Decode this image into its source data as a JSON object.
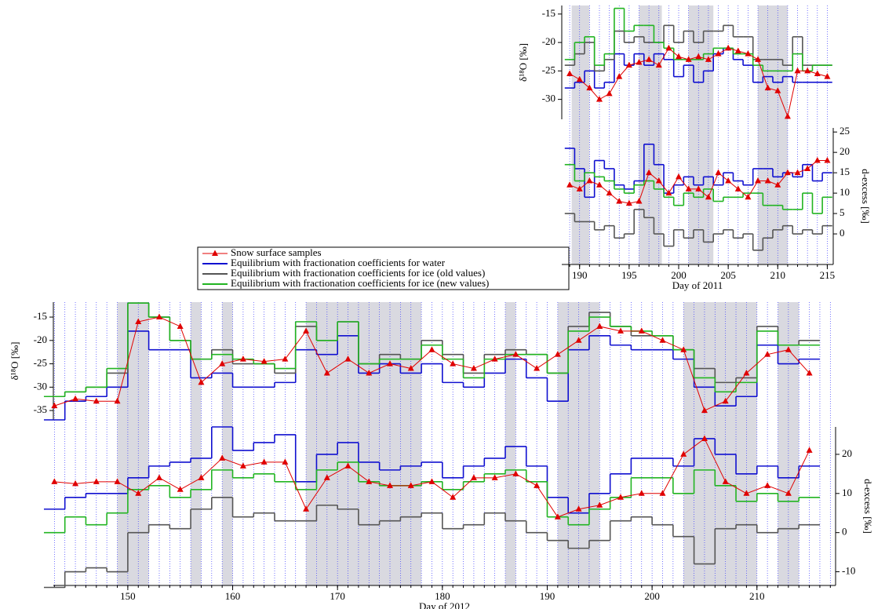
{
  "chart_data": [
    {
      "type": "step",
      "ylabel": "δ¹⁸O [‰]",
      "legend": true,
      "x": [
        189,
        190,
        191,
        192,
        193,
        194,
        195,
        196,
        197,
        198,
        199,
        200,
        201,
        202,
        203,
        204,
        205,
        206,
        207,
        208,
        209,
        210,
        211,
        212,
        213,
        214,
        215
      ],
      "xlim": [
        188.2,
        215.6
      ],
      "ylim": [
        -33.5,
        -13.5
      ],
      "yticks": [
        -30,
        -25,
        -20,
        -15
      ],
      "shaded": [
        [
          189.2,
          191
        ],
        [
          196,
          198.3
        ],
        [
          201,
          203.5
        ],
        [
          208,
          211
        ]
      ],
      "series": [
        {
          "name": "Snow surface samples",
          "color": "#e00000",
          "style": "markers",
          "values": [
            -25.5,
            -26.5,
            -28,
            -30,
            -29,
            -26,
            -24,
            -23.5,
            -23,
            -24,
            -21,
            -22.5,
            -23,
            -22.5,
            -23,
            -22,
            -21,
            -21.5,
            -22,
            -23,
            -28,
            -28.5,
            -33,
            -25,
            -25,
            -25.5,
            -26
          ]
        },
        {
          "name": "Equilibrium with fractionation coefficients for water",
          "color": "#1010d0",
          "style": "step",
          "values": [
            -28,
            -27,
            -25,
            -28,
            -27,
            -22,
            -24,
            -22,
            -24,
            -22,
            -23,
            -26,
            -24,
            -27,
            -25,
            -22,
            -21,
            -23,
            -24,
            -27,
            -26,
            -27,
            -26,
            -27,
            -27,
            -27,
            -27
          ]
        },
        {
          "name": "Equilibrium with fractionation coefficients for ice (old values)",
          "color": "#555555",
          "style": "step",
          "values": [
            -24,
            -22,
            -20,
            -25,
            -23,
            -18,
            -20,
            -19,
            -20,
            -20,
            -17,
            -20,
            -18,
            -20,
            -18,
            -18,
            -17,
            -19,
            -19,
            -23,
            -23,
            -23,
            -24,
            -19,
            -24,
            -24,
            -24
          ]
        },
        {
          "name": "Equilibrium with fractionation coefficients for ice (new values)",
          "color": "#22b422",
          "style": "step",
          "values": [
            -23,
            -20,
            -19,
            -24,
            -22,
            -14,
            -18,
            -17,
            -17,
            -20,
            -21,
            -23,
            -23,
            -23,
            -22,
            -21,
            -21,
            -22,
            -22,
            -24,
            -25,
            -25,
            -25,
            -22,
            -25,
            -24,
            -24
          ]
        }
      ]
    },
    {
      "type": "step",
      "ylabel": "d-excess [‰]",
      "xlabel": "Day of 2011",
      "x": [
        189,
        190,
        191,
        192,
        193,
        194,
        195,
        196,
        197,
        198,
        199,
        200,
        201,
        202,
        203,
        204,
        205,
        206,
        207,
        208,
        209,
        210,
        211,
        212,
        213,
        214,
        215
      ],
      "xlim": [
        188.2,
        215.6
      ],
      "xticks": [
        190,
        195,
        200,
        205,
        210,
        215
      ],
      "ylim": [
        -7.5,
        26
      ],
      "yticks": [
        0,
        5,
        10,
        15,
        20,
        25
      ],
      "shaded": [
        [
          189.2,
          191
        ],
        [
          196,
          198.3
        ],
        [
          201,
          203.5
        ],
        [
          208,
          211
        ]
      ],
      "series": [
        {
          "name": "Snow surface samples",
          "color": "#e00000",
          "style": "markers",
          "values": [
            12,
            11,
            13,
            12,
            10,
            8,
            7.5,
            8,
            15,
            13,
            10,
            14,
            11,
            11,
            9,
            15,
            13,
            11,
            9,
            13,
            13,
            12,
            15,
            15,
            16,
            18,
            18
          ]
        },
        {
          "name": "Equilibrium with fractionation coefficients for water",
          "color": "#1010d0",
          "style": "step",
          "values": [
            21,
            16,
            9,
            18,
            16,
            12,
            11,
            13,
            22,
            17,
            10,
            12,
            14,
            12,
            14,
            12,
            15,
            13,
            12,
            16,
            16,
            14,
            15,
            14,
            17,
            13,
            15
          ]
        },
        {
          "name": "Equilibrium with fractionation coefficients for ice (old values)",
          "color": "#555555",
          "style": "step",
          "values": [
            5,
            3,
            3,
            1,
            2,
            -1,
            0,
            6,
            4,
            0,
            -3,
            1,
            -1,
            1,
            -2,
            0,
            1,
            -1,
            0,
            -4,
            -1,
            1,
            2,
            0,
            1,
            0,
            2
          ]
        },
        {
          "name": "Equilibrium with fractionation coefficients for ice (new values)",
          "color": "#22b422",
          "style": "step",
          "values": [
            17,
            13,
            15,
            14,
            13,
            11,
            10,
            12,
            13,
            11,
            9,
            7,
            10,
            9,
            11,
            8,
            9,
            9,
            10,
            10,
            7,
            7,
            6,
            6,
            10,
            5,
            9
          ]
        }
      ]
    },
    {
      "type": "step",
      "ylabel": "δ¹⁸O [‰]",
      "x": [
        143,
        145,
        147,
        149,
        151,
        153,
        155,
        157,
        159,
        161,
        163,
        165,
        167,
        169,
        171,
        173,
        175,
        177,
        179,
        181,
        183,
        185,
        187,
        189,
        191,
        193,
        195,
        197,
        199,
        201,
        203,
        205,
        207,
        209,
        211,
        213,
        215
      ],
      "xlim": [
        142.9,
        217.5
      ],
      "ylim": [
        -37,
        -11.8
      ],
      "yticks": [
        -35,
        -30,
        -25,
        -20,
        -15
      ],
      "shaded": [
        [
          149,
          152
        ],
        [
          156,
          157
        ],
        [
          159,
          160
        ],
        [
          167,
          178
        ],
        [
          186,
          187
        ],
        [
          191,
          195
        ],
        [
          203,
          210
        ],
        [
          212,
          214
        ]
      ],
      "series": [
        {
          "name": "Snow surface samples",
          "color": "#e00000",
          "style": "markers",
          "values": [
            -34,
            -32.5,
            -33,
            -33,
            -16,
            -15,
            -17,
            -29,
            -25,
            -24,
            -24.5,
            -24,
            -18,
            -27,
            -24,
            -27,
            -25,
            -26,
            -22,
            -25,
            -26,
            -24,
            -23,
            -26,
            -23,
            -20,
            -17,
            -18,
            -18,
            -20,
            -22,
            -35,
            -33,
            -27,
            -23,
            -22,
            -27
          ]
        },
        {
          "name": "Equilibrium with fractionation coefficients for water",
          "color": "#1010d0",
          "style": "step",
          "values": [
            -37,
            -33,
            -32,
            -30,
            -18,
            -22,
            -22,
            -28,
            -27,
            -30,
            -30,
            -29,
            -22,
            -23,
            -19,
            -27,
            -25,
            -27,
            -25,
            -29,
            -30,
            -27,
            -24,
            -28,
            -33,
            -22,
            -19,
            -21,
            -22,
            -22,
            -24,
            -30,
            -34,
            -32,
            -21,
            -25,
            -24
          ]
        },
        {
          "name": "Equilibrium with fractionation coefficients for ice (old values)",
          "color": "#555555",
          "style": "step",
          "values": [
            -32,
            -31,
            -30,
            -27,
            -12,
            -15,
            -20,
            -24,
            -22,
            -25,
            -25,
            -27,
            -17,
            -20,
            -16,
            -25,
            -23,
            -24,
            -20,
            -23,
            -27,
            -23,
            -22,
            -23,
            -27,
            -17,
            -14,
            -17,
            -19,
            -19,
            -22,
            -26,
            -29,
            -28,
            -17,
            -21,
            -20
          ]
        },
        {
          "name": "Equilibrium with fractionation coefficients for ice (new values)",
          "color": "#22b422",
          "style": "step",
          "values": [
            -32,
            -31,
            -30,
            -26,
            -12,
            -15,
            -20,
            -24,
            -23,
            -24,
            -25,
            -26,
            -16,
            -20,
            -16,
            -25,
            -24,
            -24,
            -21,
            -24,
            -28,
            -24,
            -23,
            -23,
            -27,
            -18,
            -15,
            -17,
            -18,
            -19,
            -22,
            -28,
            -31,
            -29,
            -18,
            -21,
            -21
          ]
        }
      ]
    },
    {
      "type": "step",
      "ylabel": "d-excess [‰]",
      "xlabel": "Day of 2012",
      "x": [
        143,
        145,
        147,
        149,
        151,
        153,
        155,
        157,
        159,
        161,
        163,
        165,
        167,
        169,
        171,
        173,
        175,
        177,
        179,
        181,
        183,
        185,
        187,
        189,
        191,
        193,
        195,
        197,
        199,
        201,
        203,
        205,
        207,
        209,
        211,
        213,
        215
      ],
      "xlim": [
        142.9,
        217.5
      ],
      "xticks": [
        150,
        160,
        170,
        180,
        190,
        200,
        210
      ],
      "ylim": [
        -13.5,
        27
      ],
      "yticks": [
        -10,
        0,
        10,
        20
      ],
      "shaded": [
        [
          149,
          152
        ],
        [
          156,
          157
        ],
        [
          159,
          160
        ],
        [
          167,
          178
        ],
        [
          186,
          187
        ],
        [
          191,
          195
        ],
        [
          203,
          210
        ],
        [
          212,
          214
        ]
      ],
      "series": [
        {
          "name": "Snow surface samples",
          "color": "#e00000",
          "style": "markers",
          "values": [
            13,
            12.5,
            13,
            13,
            10,
            14,
            11,
            14,
            19,
            17,
            18,
            18,
            6,
            14,
            17,
            13,
            12,
            12,
            13,
            9,
            14,
            14,
            15,
            12,
            4,
            6,
            7,
            9,
            10,
            10,
            20,
            24,
            13,
            10,
            12,
            10,
            21
          ]
        },
        {
          "name": "Equilibrium with fractionation coefficients for water",
          "color": "#1010d0",
          "style": "step",
          "values": [
            6,
            9,
            10,
            10,
            14,
            17,
            18,
            19,
            27,
            21,
            23,
            25,
            13,
            20,
            23,
            18,
            16,
            17,
            18,
            14,
            17,
            19,
            22,
            17,
            9,
            5,
            10,
            15,
            19,
            19,
            17,
            24,
            20,
            15,
            17,
            14,
            17
          ]
        },
        {
          "name": "Equilibrium with fractionation coefficients for ice (old values)",
          "color": "#555555",
          "style": "step",
          "values": [
            -14,
            -10,
            -9,
            -10,
            0,
            2,
            1,
            6,
            9,
            4,
            5,
            3,
            3,
            7,
            6,
            2,
            3,
            4,
            5,
            1,
            2,
            5,
            3,
            0,
            -2,
            -4,
            -2,
            3,
            4,
            2,
            -1,
            -8,
            1,
            2,
            0,
            1,
            2
          ]
        },
        {
          "name": "Equilibrium with fractionation coefficients for ice (new values)",
          "color": "#22b422",
          "style": "step",
          "values": [
            0,
            4,
            2,
            5,
            11,
            12,
            9,
            11,
            16,
            14,
            15,
            13,
            11,
            16,
            18,
            13,
            12,
            12,
            13,
            11,
            13,
            15,
            16,
            13,
            4,
            2,
            6,
            9,
            14,
            14,
            10,
            16,
            12,
            8,
            10,
            8,
            9
          ]
        }
      ]
    }
  ]
}
